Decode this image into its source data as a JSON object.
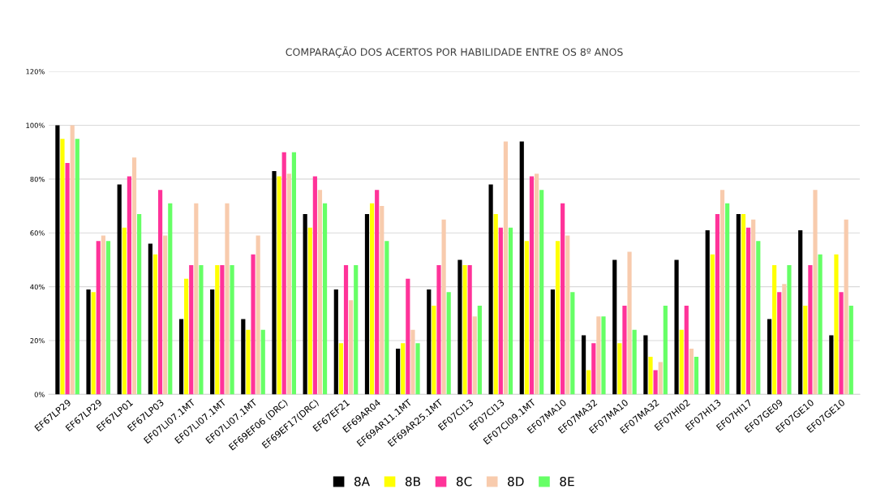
{
  "chart_data": {
    "type": "bar",
    "title": "COMPARAÇÃO DOS ACERTOS POR HABILIDADE ENTRE OS 8º ANOS",
    "categories": [
      "EF67LP29",
      "EF67LP29",
      "EF67LP01",
      "EF67LP03",
      "EF07LI07.1MT",
      "EF07LI07.1MT",
      "EF07LI07.1MT",
      "EF69EF06 (DRC)",
      "EF69EF17(DRC)",
      "EF67EF21",
      "EF69AR04",
      "EF69AR11.1MT",
      "EF69AR25.1MT",
      "EF07CI13",
      "EF07CI13",
      "EF07CI09.1MT",
      "EF07MA10",
      "EF07MA32",
      "EF07MA10",
      "EF07MA32",
      "EF07HI02",
      "EF07HI13",
      "EF07HI17",
      "EF07GE09",
      "EF07GE10",
      "EF07GE10"
    ],
    "series": [
      {
        "name": "8A",
        "color": "#000000",
        "values": [
          100,
          39,
          78,
          56,
          28,
          39,
          28,
          83,
          67,
          39,
          67,
          17,
          39,
          50,
          78,
          94,
          39,
          22,
          50,
          22,
          50,
          61,
          67,
          28,
          61,
          22
        ]
      },
      {
        "name": "8B",
        "color": "#ffff00",
        "values": [
          95,
          38,
          62,
          52,
          43,
          48,
          24,
          81,
          62,
          19,
          71,
          19,
          33,
          48,
          67,
          57,
          57,
          9,
          19,
          14,
          24,
          52,
          67,
          48,
          33,
          52
        ]
      },
      {
        "name": "8C",
        "color": "#ff3399",
        "values": [
          86,
          57,
          81,
          76,
          48,
          48,
          52,
          90,
          81,
          48,
          76,
          43,
          48,
          48,
          62,
          81,
          71,
          19,
          33,
          9,
          33,
          67,
          62,
          38,
          48,
          38
        ]
      },
      {
        "name": "8D",
        "color": "#f8cbad",
        "values": [
          100,
          59,
          88,
          59,
          71,
          71,
          59,
          82,
          76,
          35,
          70,
          24,
          65,
          29,
          94,
          82,
          59,
          29,
          53,
          12,
          17,
          76,
          65,
          41,
          76,
          65
        ]
      },
      {
        "name": "8E",
        "color": "#66ff66",
        "values": [
          95,
          57,
          67,
          71,
          48,
          48,
          24,
          90,
          71,
          48,
          57,
          19,
          38,
          33,
          62,
          76,
          38,
          29,
          24,
          33,
          14,
          71,
          57,
          48,
          52,
          33
        ]
      }
    ],
    "ylim": [
      0,
      120
    ],
    "yticks": [
      {
        "value": 0,
        "label": "0%"
      },
      {
        "value": 20,
        "label": "20%"
      },
      {
        "value": 40,
        "label": "40%"
      },
      {
        "value": 60,
        "label": "60%"
      },
      {
        "value": 80,
        "label": "80%"
      },
      {
        "value": 100,
        "label": "100%"
      },
      {
        "value": 120,
        "label": "120%"
      }
    ],
    "grid": "y",
    "legend": "bottom"
  }
}
